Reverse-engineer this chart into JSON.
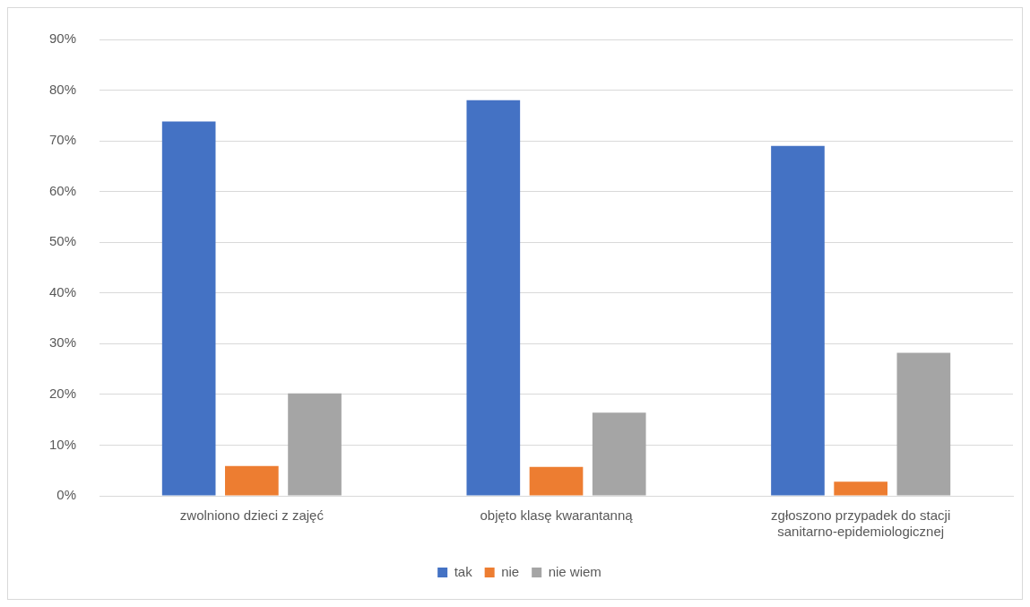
{
  "chart_data": {
    "type": "bar",
    "categories": [
      "zwolniono dzieci z zajęć",
      "objęto klasę kwarantanną",
      "zgłoszono przypadek do stacji sanitarno-epidemiologicznej"
    ],
    "series": [
      {
        "name": "tak",
        "color": "#4472c4",
        "values": [
          73.8,
          78,
          69
        ]
      },
      {
        "name": "nie",
        "color": "#ed7d31",
        "values": [
          5.9,
          5.7,
          2.8
        ]
      },
      {
        "name": "nie wiem",
        "color": "#a5a5a5",
        "values": [
          20.2,
          16.4,
          28.2
        ]
      }
    ],
    "ylim": [
      0,
      90
    ],
    "yticks": [
      {
        "value": 0,
        "label": "0%"
      },
      {
        "value": 10,
        "label": "10%"
      },
      {
        "value": 20,
        "label": "20%"
      },
      {
        "value": 30,
        "label": "30%"
      },
      {
        "value": 40,
        "label": "40%"
      },
      {
        "value": 50,
        "label": "50%"
      },
      {
        "value": 60,
        "label": "60%"
      },
      {
        "value": 70,
        "label": "70%"
      },
      {
        "value": 80,
        "label": "80%"
      },
      {
        "value": 90,
        "label": "90%"
      }
    ],
    "grid": "y",
    "legend": "bottom"
  }
}
